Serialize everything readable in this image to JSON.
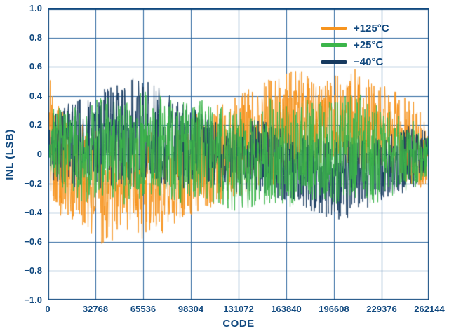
{
  "colors": {
    "axis_text": "#11497f",
    "plot_border": "#11497f",
    "grid": "#2e679f",
    "background": "#ffffff"
  },
  "chart_data": {
    "type": "line",
    "title": "",
    "xlabel": "CODE",
    "ylabel": "INL (LSB)",
    "xlim": [
      0,
      262144
    ],
    "ylim": [
      -1.0,
      1.0
    ],
    "grid": true,
    "legend_position": "top-right",
    "x_ticks": [
      0,
      32768,
      65536,
      98304,
      131072,
      163840,
      196608,
      229376,
      262144
    ],
    "x_tick_labels": [
      "0",
      "32768",
      "65536",
      "98304",
      "131072",
      "163840",
      "196608",
      "229376",
      "262144"
    ],
    "y_ticks": [
      1.0,
      0.8,
      0.6,
      0.4,
      0.2,
      0.0,
      -0.2,
      -0.4,
      -0.6,
      -0.8,
      -1.0
    ],
    "y_tick_labels": [
      "1.0",
      "0.8",
      "0.6",
      "0.4",
      "0.2",
      "0",
      "−0.2",
      "−0.4",
      "−0.6",
      "−0.8",
      "−1.0"
    ],
    "note": "Dense noise-like INL traces; per-series envelopes (LSB) estimated from figure at code fractions x.",
    "series": [
      {
        "name": "+125°C",
        "color": "#f7941e",
        "x": [
          0,
          0.02,
          0.05,
          0.1,
          0.15,
          0.2,
          0.25,
          0.3,
          0.35,
          0.4,
          0.45,
          0.5,
          0.55,
          0.6,
          0.65,
          0.7,
          0.75,
          0.8,
          0.85,
          0.9,
          0.95,
          1
        ],
        "envelope_low": [
          -0.3,
          -0.35,
          -0.5,
          -0.55,
          -0.65,
          -0.5,
          -0.6,
          -0.55,
          -0.45,
          -0.4,
          -0.35,
          -0.3,
          -0.25,
          -0.2,
          -0.15,
          -0.15,
          -0.1,
          -0.15,
          -0.1,
          -0.15,
          -0.2,
          -0.3
        ],
        "envelope_high": [
          0.58,
          0.45,
          0.25,
          0.2,
          0.15,
          0.2,
          0.15,
          0.2,
          0.25,
          0.3,
          0.35,
          0.45,
          0.5,
          0.55,
          0.6,
          0.5,
          0.55,
          0.6,
          0.5,
          0.45,
          0.4,
          0.2
        ]
      },
      {
        "name": "+25°C",
        "color": "#3bb54a",
        "x": [
          0,
          0.02,
          0.05,
          0.1,
          0.15,
          0.2,
          0.25,
          0.3,
          0.35,
          0.4,
          0.45,
          0.5,
          0.55,
          0.6,
          0.65,
          0.7,
          0.75,
          0.8,
          0.85,
          0.9,
          0.95,
          1
        ],
        "envelope_low": [
          -0.15,
          -0.2,
          -0.3,
          -0.35,
          -0.3,
          -0.35,
          -0.3,
          -0.3,
          -0.35,
          -0.3,
          -0.35,
          -0.4,
          -0.35,
          -0.35,
          -0.4,
          -0.35,
          -0.35,
          -0.3,
          -0.35,
          -0.3,
          -0.25,
          -0.15
        ],
        "envelope_high": [
          0.3,
          0.35,
          0.3,
          0.35,
          0.4,
          0.35,
          0.45,
          0.4,
          0.35,
          0.4,
          0.35,
          0.3,
          0.35,
          0.4,
          0.35,
          0.4,
          0.35,
          0.45,
          0.35,
          0.3,
          0.25,
          0.1
        ]
      },
      {
        "name": "−40°C",
        "color": "#16395f",
        "x": [
          0,
          0.02,
          0.05,
          0.1,
          0.15,
          0.2,
          0.25,
          0.3,
          0.35,
          0.4,
          0.45,
          0.5,
          0.55,
          0.6,
          0.65,
          0.7,
          0.75,
          0.8,
          0.85,
          0.9,
          0.95,
          1
        ],
        "envelope_low": [
          -0.15,
          -0.2,
          -0.25,
          -0.2,
          -0.25,
          -0.2,
          -0.25,
          -0.2,
          -0.25,
          -0.2,
          -0.25,
          -0.3,
          -0.25,
          -0.3,
          -0.35,
          -0.4,
          -0.45,
          -0.45,
          -0.35,
          -0.3,
          -0.25,
          -0.15
        ],
        "envelope_high": [
          0.35,
          0.3,
          0.35,
          0.4,
          0.45,
          0.5,
          0.55,
          0.45,
          0.35,
          0.3,
          0.25,
          0.2,
          0.25,
          0.2,
          0.15,
          0.15,
          0.1,
          0.15,
          0.1,
          0.15,
          0.2,
          0.15
        ]
      }
    ]
  }
}
